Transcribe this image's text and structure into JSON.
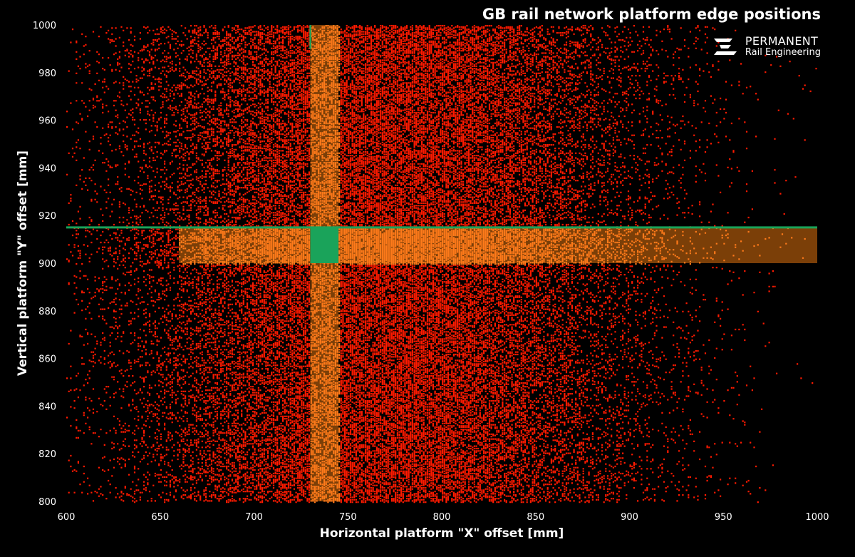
{
  "header": {
    "title": "GB rail network platform edge positions",
    "logo_line1": "PERMANENT",
    "logo_line2": "Rail Engineering"
  },
  "chart_data": {
    "type": "scatter",
    "title": "GB rail network platform edge positions",
    "xlabel": "Horizontal platform \"X\" offset [mm]",
    "ylabel": "Vertical platform \"Y\" offset [mm]",
    "xlim": [
      600,
      1000
    ],
    "ylim": [
      800,
      1000
    ],
    "x_ticks": [
      600,
      650,
      700,
      750,
      800,
      850,
      900,
      950,
      1000
    ],
    "y_ticks": [
      800,
      820,
      840,
      860,
      880,
      900,
      920,
      940,
      960,
      980,
      1000
    ],
    "grid": false,
    "distribution": {
      "x_center": 770,
      "x_spread": 65,
      "y_min": 800,
      "y_max": 1000,
      "point_count": 60000
    },
    "horizontal_band": {
      "y_range": [
        900,
        915
      ],
      "x_range": [
        660,
        1000
      ]
    },
    "vertical_band": {
      "x_range": [
        730,
        745
      ],
      "y_range": [
        800,
        1000
      ]
    },
    "compliant_zone": {
      "x_range": [
        730,
        745
      ],
      "y_range": [
        900,
        915
      ]
    },
    "reference_lines": [
      {
        "orientation": "horizontal",
        "value": 915,
        "from": 600,
        "to": 1000
      },
      {
        "orientation": "vertical",
        "value": 730,
        "from": 990,
        "to": 1000
      }
    ],
    "colors": {
      "background": "#000000",
      "points": "#ff1a00",
      "band_points": "#ff7a1a",
      "band_fill": "#e0720f",
      "compliant": "#1aa35a",
      "reference_line": "#1aa35a"
    }
  }
}
